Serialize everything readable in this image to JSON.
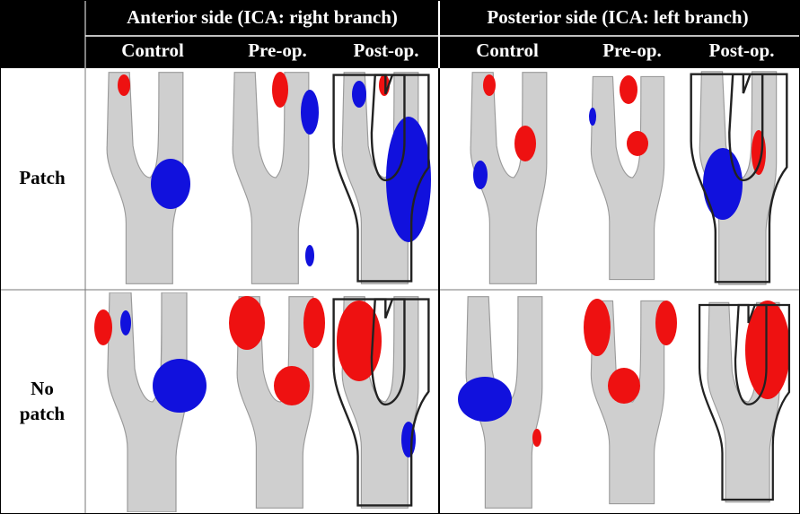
{
  "header": {
    "groups": [
      "Anterior side (ICA: right branch)",
      "Posterior side (ICA: left branch)"
    ],
    "columns": [
      "Control",
      "Pre-op.",
      "Post-op.",
      "Control",
      "Pre-op.",
      "Post-op."
    ]
  },
  "rows": [
    {
      "label": [
        "Patch"
      ]
    },
    {
      "label": [
        "No",
        "patch"
      ]
    }
  ]
}
